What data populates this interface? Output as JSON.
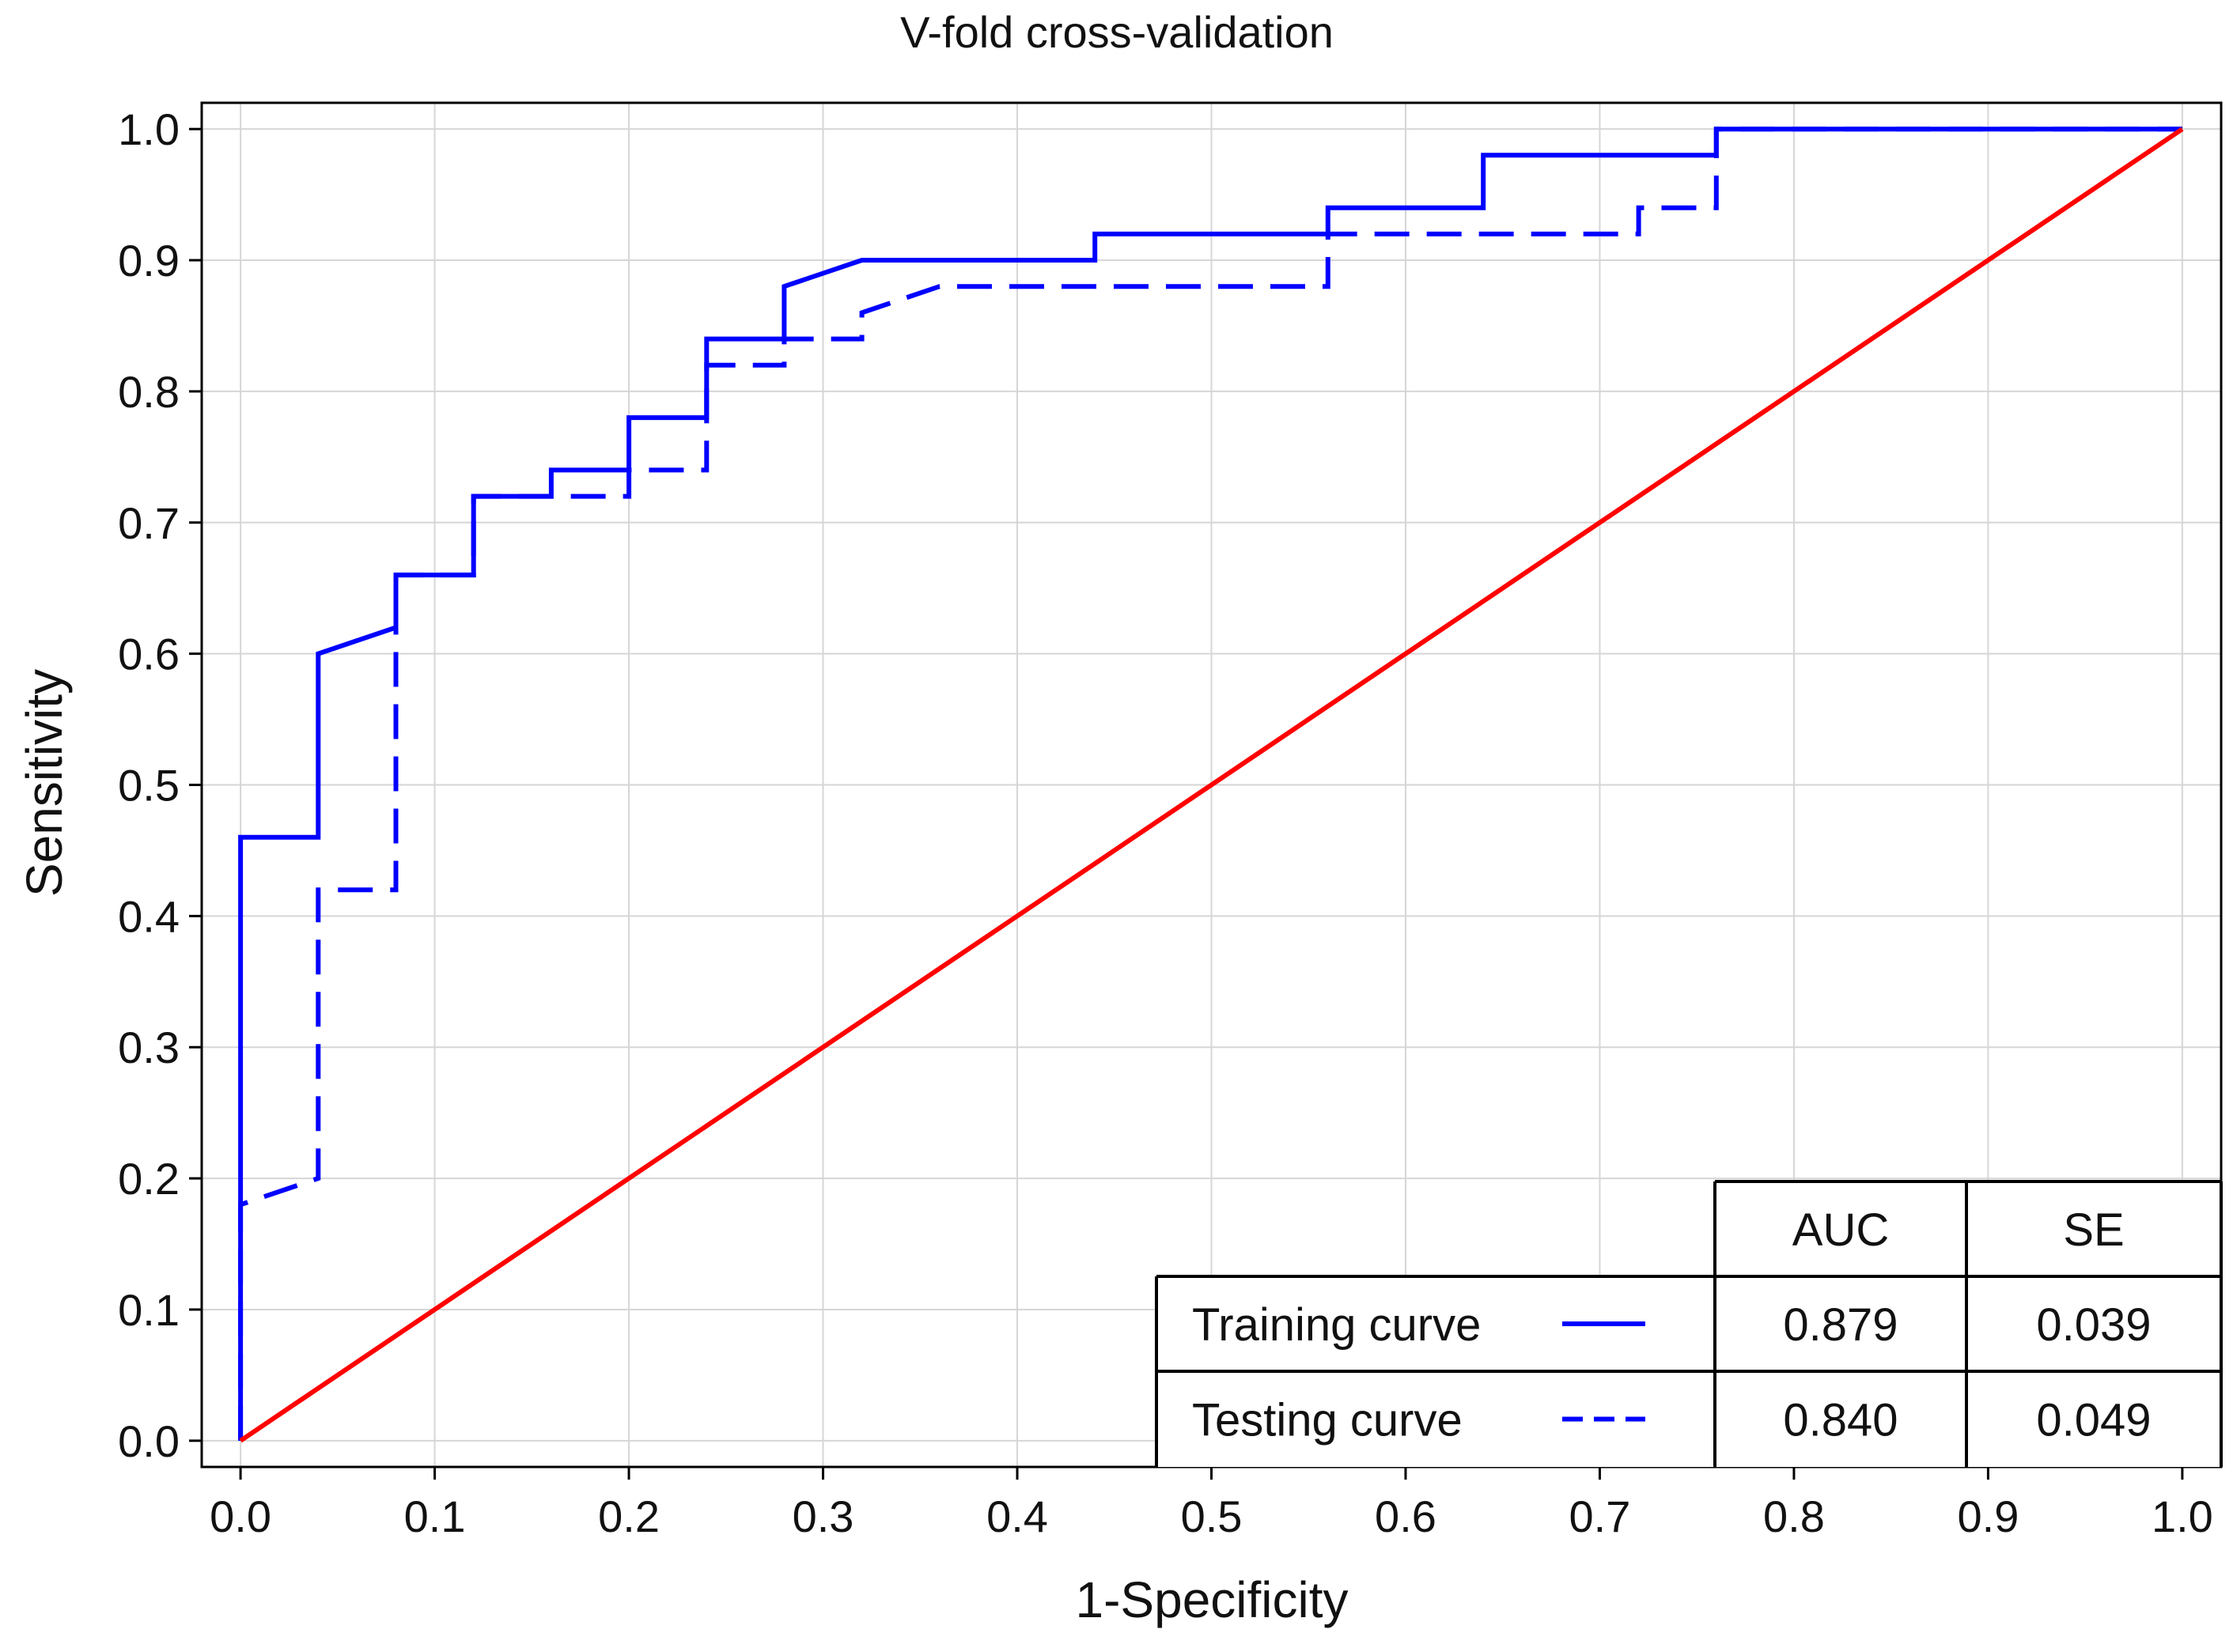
{
  "chart_data": {
    "type": "line",
    "title": "V-fold cross-validation",
    "xlabel": "1-Specificity",
    "ylabel": "Sensitivity",
    "xlim": [
      -0.02,
      1.02
    ],
    "ylim": [
      -0.02,
      1.02
    ],
    "xticks": [
      0.0,
      0.1,
      0.2,
      0.3,
      0.4,
      0.5,
      0.6,
      0.7,
      0.8,
      0.9,
      1.0
    ],
    "yticks": [
      0.0,
      0.1,
      0.2,
      0.3,
      0.4,
      0.5,
      0.6,
      0.7,
      0.8,
      0.9,
      1.0
    ],
    "xtick_labels": [
      "0.0",
      "0.1",
      "0.2",
      "0.3",
      "0.4",
      "0.5",
      "0.6",
      "0.7",
      "0.8",
      "0.9",
      "1.0"
    ],
    "ytick_labels": [
      "0.0",
      "0.1",
      "0.2",
      "0.3",
      "0.4",
      "0.5",
      "0.6",
      "0.7",
      "0.8",
      "0.9",
      "1.0"
    ],
    "grid": true,
    "series": [
      {
        "name": "Training curve",
        "style": "solid",
        "color": "#0000ff",
        "points": [
          [
            0,
            0
          ],
          [
            0,
            0.46
          ],
          [
            0.04,
            0.46
          ],
          [
            0.04,
            0.6
          ],
          [
            0.08,
            0.62
          ],
          [
            0.08,
            0.66
          ],
          [
            0.12,
            0.66
          ],
          [
            0.12,
            0.72
          ],
          [
            0.16,
            0.72
          ],
          [
            0.16,
            0.74
          ],
          [
            0.2,
            0.74
          ],
          [
            0.2,
            0.78
          ],
          [
            0.24,
            0.78
          ],
          [
            0.24,
            0.84
          ],
          [
            0.28,
            0.84
          ],
          [
            0.28,
            0.88
          ],
          [
            0.32,
            0.9
          ],
          [
            0.44,
            0.9
          ],
          [
            0.44,
            0.92
          ],
          [
            0.56,
            0.92
          ],
          [
            0.56,
            0.94
          ],
          [
            0.64,
            0.94
          ],
          [
            0.64,
            0.98
          ],
          [
            0.76,
            0.98
          ],
          [
            0.76,
            1.0
          ],
          [
            1.0,
            1.0
          ]
        ]
      },
      {
        "name": "Testing curve",
        "style": "dashed",
        "color": "#0000ff",
        "points": [
          [
            0,
            0
          ],
          [
            0,
            0.18
          ],
          [
            0.04,
            0.2
          ],
          [
            0.04,
            0.42
          ],
          [
            0.08,
            0.42
          ],
          [
            0.08,
            0.62
          ],
          [
            0.08,
            0.66
          ],
          [
            0.12,
            0.66
          ],
          [
            0.12,
            0.72
          ],
          [
            0.2,
            0.72
          ],
          [
            0.2,
            0.74
          ],
          [
            0.24,
            0.74
          ],
          [
            0.24,
            0.76
          ],
          [
            0.24,
            0.82
          ],
          [
            0.28,
            0.82
          ],
          [
            0.28,
            0.84
          ],
          [
            0.32,
            0.84
          ],
          [
            0.32,
            0.86
          ],
          [
            0.36,
            0.88
          ],
          [
            0.56,
            0.88
          ],
          [
            0.56,
            0.92
          ],
          [
            0.72,
            0.92
          ],
          [
            0.72,
            0.94
          ],
          [
            0.76,
            0.94
          ],
          [
            0.76,
            1.0
          ],
          [
            1.0,
            1.0
          ]
        ]
      },
      {
        "name": "",
        "style": "solid",
        "color": "#ff0000",
        "points": [
          [
            0,
            0
          ],
          [
            1,
            1
          ]
        ]
      }
    ],
    "legend_table": {
      "placement": "bottom-right",
      "headers": [
        "AUC",
        "SE"
      ],
      "rows": [
        {
          "label": "Training curve",
          "style": "solid",
          "auc": "0.879",
          "se": "0.039"
        },
        {
          "label": "Testing curve",
          "style": "dashed",
          "auc": "0.840",
          "se": "0.049"
        }
      ]
    }
  }
}
